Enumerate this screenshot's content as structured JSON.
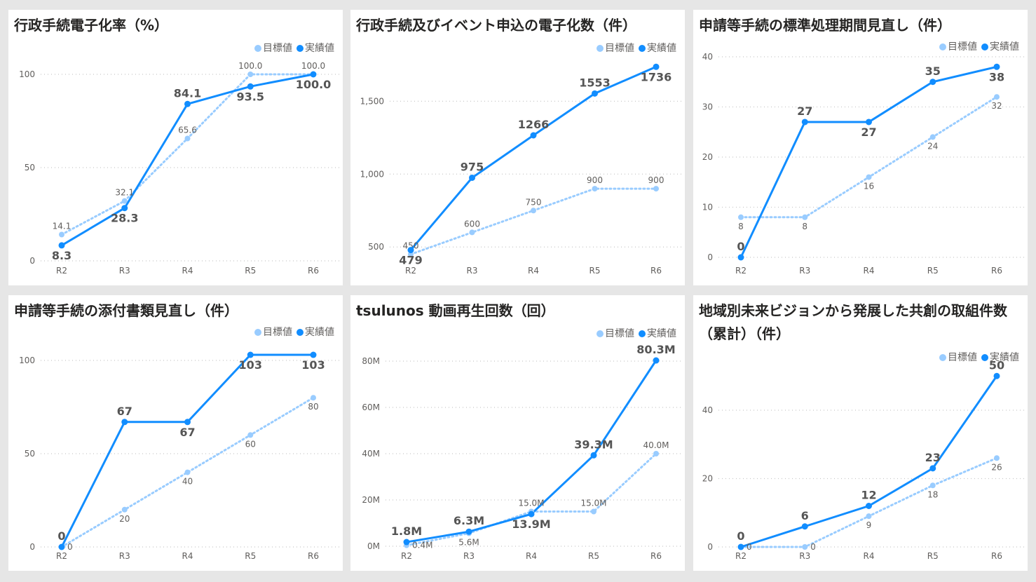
{
  "colors": {
    "actual": "#118dff",
    "target": "#99ccff",
    "background": "#e6e6e6"
  },
  "legend": {
    "target": "目標値",
    "actual": "実績値"
  },
  "chart_data": [
    {
      "type": "line",
      "title": "行政手続電子化率（%）",
      "categories": [
        "R2",
        "R3",
        "R4",
        "R5",
        "R6"
      ],
      "yticks": [
        "0",
        "50",
        "100"
      ],
      "ytick_values": [
        0,
        50,
        100
      ],
      "ylim": [
        0,
        100
      ],
      "grid": true,
      "legend": "top-right",
      "series": [
        {
          "name": "目標値",
          "values": [
            14.1,
            32.1,
            65.6,
            100.0,
            100.0
          ],
          "labels": [
            "14.1",
            "32.1",
            "65.6",
            "100.0",
            "100.0"
          ]
        },
        {
          "name": "実績値",
          "values": [
            8.3,
            28.3,
            84.1,
            93.5,
            100.0
          ],
          "labels": [
            "8.3",
            "28.3",
            "84.1",
            "93.5",
            "100.0"
          ]
        }
      ]
    },
    {
      "type": "line",
      "title": "行政手続及びイベント申込の電子化数（件）",
      "categories": [
        "R2",
        "R3",
        "R4",
        "R5",
        "R6"
      ],
      "yticks": [
        "500",
        "1,000",
        "1,500"
      ],
      "ytick_values": [
        500,
        1000,
        1500
      ],
      "ylim": [
        400,
        1800
      ],
      "grid": true,
      "legend": "top-right",
      "series": [
        {
          "name": "目標値",
          "values": [
            450,
            600,
            750,
            900,
            900
          ],
          "labels": [
            "450",
            "600",
            "750",
            "900",
            "900"
          ]
        },
        {
          "name": "実績値",
          "values": [
            479,
            975,
            1266,
            1553,
            1736
          ],
          "labels": [
            "479",
            "975",
            "1266",
            "1553",
            "1736"
          ]
        }
      ]
    },
    {
      "type": "line",
      "title": "申請等手続の標準処理期間見直し（件）",
      "categories": [
        "R2",
        "R3",
        "R4",
        "R5",
        "R6"
      ],
      "yticks": [
        "0",
        "10",
        "20",
        "30",
        "40"
      ],
      "ytick_values": [
        0,
        10,
        20,
        30,
        40
      ],
      "ylim": [
        0,
        40
      ],
      "grid": true,
      "legend": "top-right",
      "series": [
        {
          "name": "目標値",
          "values": [
            8,
            8,
            16,
            24,
            32
          ],
          "labels": [
            "8",
            "8",
            "16",
            "24",
            "32"
          ]
        },
        {
          "name": "実績値",
          "values": [
            0,
            27,
            27,
            35,
            38
          ],
          "labels": [
            "0",
            "27",
            "27",
            "35",
            "38"
          ]
        }
      ]
    },
    {
      "type": "line",
      "title": "申請等手続の添付書類見直し（件）",
      "categories": [
        "R2",
        "R3",
        "R4",
        "R5",
        "R6"
      ],
      "yticks": [
        "0",
        "50",
        "100"
      ],
      "ytick_values": [
        0,
        50,
        100
      ],
      "ylim": [
        0,
        100
      ],
      "grid": true,
      "legend": "top-right",
      "series": [
        {
          "name": "目標値",
          "values": [
            0,
            20,
            40,
            60,
            80
          ],
          "labels": [
            "0",
            "20",
            "40",
            "60",
            "80"
          ]
        },
        {
          "name": "実績値",
          "values": [
            0,
            67,
            67,
            103,
            103
          ],
          "labels": [
            "0",
            "67",
            "67",
            "103",
            "103"
          ]
        }
      ]
    },
    {
      "type": "line",
      "title": "tsulunos 動画再生回数（回）",
      "categories": [
        "R2",
        "R3",
        "R4",
        "R5",
        "R6"
      ],
      "yticks": [
        "0M",
        "20M",
        "40M",
        "60M",
        "80M"
      ],
      "ytick_values": [
        0,
        20,
        40,
        60,
        80
      ],
      "ylim": [
        0,
        80
      ],
      "grid": true,
      "legend": "top-right",
      "series": [
        {
          "name": "目標値",
          "values": [
            0.4,
            5.6,
            15.0,
            15.0,
            40.0
          ],
          "labels": [
            "0.4M",
            "5.6M",
            "15.0M",
            "15.0M",
            "40.0M"
          ]
        },
        {
          "name": "実績値",
          "values": [
            1.8,
            6.3,
            13.9,
            39.3,
            80.3
          ],
          "labels": [
            "1.8M",
            "6.3M",
            "13.9M",
            "39.3M",
            "80.3M"
          ]
        }
      ]
    },
    {
      "type": "line",
      "title": "地域別未来ビジョンから発展した共創の取組件数（累計）（件）",
      "categories": [
        "R2",
        "R3",
        "R4",
        "R5",
        "R6"
      ],
      "yticks": [
        "0",
        "20",
        "40"
      ],
      "ytick_values": [
        0,
        20,
        40
      ],
      "ylim": [
        0,
        40
      ],
      "grid": true,
      "legend": "top-right",
      "series": [
        {
          "name": "目標値",
          "values": [
            0,
            0,
            9,
            18,
            26
          ],
          "labels": [
            "0",
            "0",
            "9",
            "18",
            "26"
          ]
        },
        {
          "name": "実績値",
          "values": [
            0,
            6,
            12,
            23,
            50
          ],
          "labels": [
            "0",
            "6",
            "12",
            "23",
            "50"
          ]
        }
      ]
    }
  ]
}
